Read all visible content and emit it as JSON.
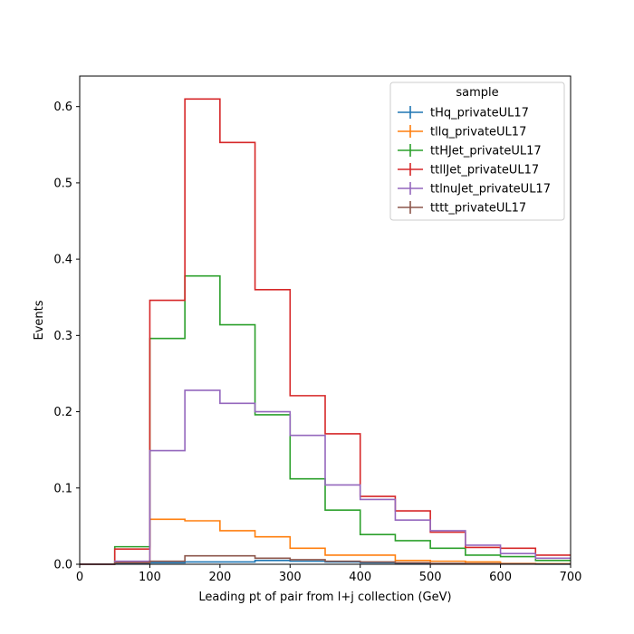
{
  "chart_data": {
    "type": "histogram-step",
    "title": "",
    "xlabel": "Leading pt of pair from l+j collection (GeV)",
    "ylabel": "Events",
    "xlim": [
      0,
      700
    ],
    "ylim": [
      0,
      0.64
    ],
    "xticks": [
      0,
      100,
      200,
      300,
      400,
      500,
      600,
      700
    ],
    "yticks": [
      0.0,
      0.1,
      0.2,
      0.3,
      0.4,
      0.5,
      0.6
    ],
    "grid": false,
    "legend": {
      "title": "sample",
      "placement": "top-right"
    },
    "bin_edges": [
      0,
      50,
      100,
      150,
      200,
      250,
      300,
      350,
      400,
      450,
      500,
      550,
      600,
      650,
      700
    ],
    "series": [
      {
        "name": "tHq_privateUL17",
        "color": "#1f77b4",
        "values": [
          0.0,
          0.001,
          0.002,
          0.003,
          0.003,
          0.005,
          0.004,
          0.003,
          0.002,
          0.001,
          0.001,
          0.0005,
          0.0003,
          0.0002
        ]
      },
      {
        "name": "tllq_privateUL17",
        "color": "#ff7f0e",
        "values": [
          0.0,
          0.003,
          0.059,
          0.057,
          0.044,
          0.036,
          0.021,
          0.012,
          0.012,
          0.005,
          0.004,
          0.003,
          0.001,
          0.0007
        ]
      },
      {
        "name": "ttHJet_privateUL17",
        "color": "#2ca02c",
        "values": [
          0.0,
          0.023,
          0.296,
          0.378,
          0.314,
          0.196,
          0.112,
          0.071,
          0.039,
          0.031,
          0.021,
          0.012,
          0.01,
          0.005
        ]
      },
      {
        "name": "ttllJet_privateUL17",
        "color": "#d62728",
        "values": [
          0.0,
          0.02,
          0.346,
          0.61,
          0.553,
          0.36,
          0.221,
          0.171,
          0.089,
          0.07,
          0.042,
          0.022,
          0.021,
          0.012
        ]
      },
      {
        "name": "ttlnuJet_privateUL17",
        "color": "#9467bd",
        "values": [
          0.0,
          0.004,
          0.149,
          0.228,
          0.211,
          0.2,
          0.169,
          0.104,
          0.085,
          0.058,
          0.044,
          0.025,
          0.014,
          0.008
        ]
      },
      {
        "name": "tttt_privateUL17",
        "color": "#8c564b",
        "values": [
          0.0,
          0.002,
          0.004,
          0.011,
          0.011,
          0.008,
          0.006,
          0.004,
          0.003,
          0.002,
          0.001,
          0.0007,
          0.0005,
          0.0003
        ]
      }
    ]
  }
}
